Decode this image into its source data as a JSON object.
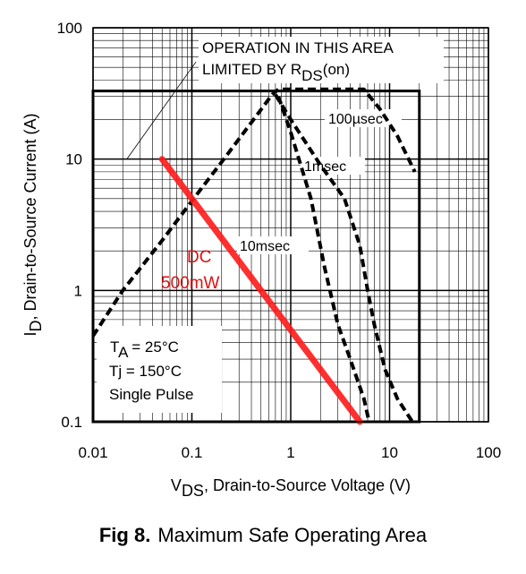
{
  "figure": {
    "number": "Fig 8.",
    "caption": "Maximum Safe Operating Area"
  },
  "chart_data": {
    "type": "line",
    "scale": {
      "x": "log",
      "y": "log"
    },
    "xlim": [
      0.01,
      100
    ],
    "ylim": [
      0.1,
      100
    ],
    "grid": true,
    "x_ticks": [
      "0.01",
      "0.1",
      "1",
      "10",
      "100"
    ],
    "y_ticks": [
      "0.1",
      "1",
      "10",
      "100"
    ],
    "xlabel": {
      "main": "V",
      "sub": "DS",
      "rest": ", Drain-to-Source Voltage (V)"
    },
    "ylabel": {
      "main": "I",
      "sub": "D",
      "rest": ",  Drain-to-Source Current (A)"
    },
    "series": [
      {
        "name": "100µsec",
        "style": "dashed",
        "color": "#000000",
        "x": [
          0.01,
          0.02,
          0.05,
          0.1,
          0.2,
          0.4,
          0.65,
          0.75,
          1.5,
          3.0,
          5.5,
          8.0,
          12.0,
          18.0
        ],
        "y": [
          0.45,
          1.0,
          2.4,
          4.8,
          9.5,
          19.0,
          31.0,
          34.0,
          34.0,
          34.0,
          34.0,
          24.0,
          15.0,
          8.0
        ]
      },
      {
        "name": "1msec",
        "style": "dashed",
        "color": "#000000",
        "x": [
          0.7,
          1.0,
          2.0,
          3.5,
          5.0,
          6.0,
          7.0,
          9.0,
          12.0,
          17.0
        ],
        "y": [
          31.0,
          20.0,
          9.0,
          5.0,
          2.2,
          1.0,
          0.55,
          0.25,
          0.15,
          0.1
        ]
      },
      {
        "name": "10msec",
        "style": "dashed",
        "color": "#000000",
        "x": [
          0.75,
          1.0,
          1.6,
          2.2,
          3.0,
          4.0,
          5.5,
          6.2
        ],
        "y": [
          30.0,
          16.0,
          5.0,
          1.5,
          0.55,
          0.3,
          0.15,
          0.1
        ]
      },
      {
        "name": "DC 500mW",
        "style": "solid",
        "color": "#ff1a1a",
        "x": [
          0.05,
          5.0
        ],
        "y": [
          10.0,
          0.1
        ]
      }
    ],
    "limits": {
      "current_max": 33,
      "voltage_max": 20
    },
    "rds_annotation_leader": {
      "x": [
        0.022,
        0.11
      ],
      "y": [
        10.0,
        55.0
      ]
    },
    "annotations": {
      "rds_line1": "OPERATION IN THIS AREA",
      "rds_line2_prefix": "LIMITED BY R",
      "rds_line2_sub": "DS",
      "rds_line2_suffix": "(on)",
      "label_100us": "100µsec",
      "label_1ms": "1msec",
      "label_10ms": "10msec",
      "dc_line1": "DC",
      "dc_line2": "500mW",
      "cond_ta_main": "T",
      "cond_ta_sub": "A",
      "cond_ta_rest": " = 25°C",
      "cond_tj": "Tj = 150°C",
      "cond_pulse": "Single Pulse"
    },
    "colors": {
      "dc": "#ff1a1a",
      "grid": "#000000",
      "curves": "#000000"
    }
  }
}
